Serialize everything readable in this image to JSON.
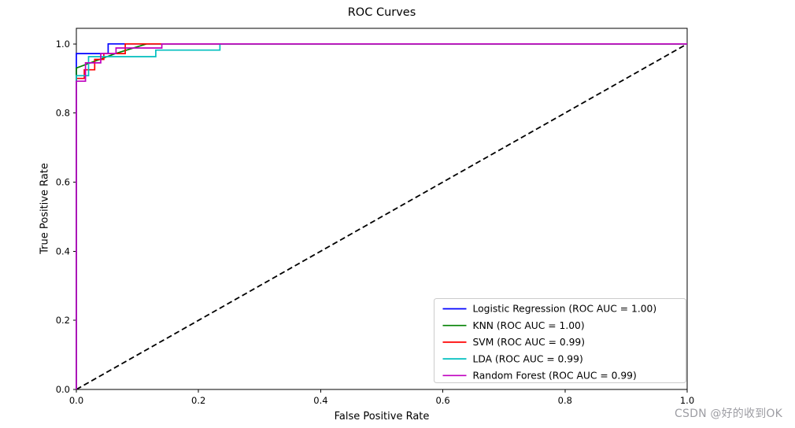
{
  "page": {
    "watermark": "CSDN @好的收到OK"
  },
  "chart_data": {
    "type": "line",
    "title": "ROC Curves",
    "xlabel": "False Positive Rate",
    "ylabel": "True Positive Rate",
    "xlim": [
      0,
      1
    ],
    "ylim": [
      0,
      1.045
    ],
    "grid": false,
    "legend_position": "lower right",
    "x_ticks": {
      "values": [
        0.0,
        0.2,
        0.4,
        0.6,
        0.8,
        1.0
      ],
      "labels": [
        "0.0",
        "0.2",
        "0.4",
        "0.6",
        "0.8",
        "1.0"
      ]
    },
    "y_ticks": {
      "values": [
        0.0,
        0.2,
        0.4,
        0.6,
        0.8,
        1.0
      ],
      "labels": [
        "0.0",
        "0.2",
        "0.4",
        "0.6",
        "0.8",
        "1.0"
      ]
    },
    "diagonal": {
      "label": "chance-line",
      "color": "#000000",
      "dashed": true,
      "points": [
        [
          0,
          0
        ],
        [
          1,
          1
        ]
      ]
    },
    "series": [
      {
        "name": "Logistic Regression (ROC AUC = 1.00)",
        "slug": "logistic-regression",
        "color": "#0000ff",
        "auc": "1.00",
        "points": [
          [
            0,
            0
          ],
          [
            0,
            0.972
          ],
          [
            0.052,
            0.972
          ],
          [
            0.052,
            1.0
          ],
          [
            1,
            1
          ]
        ]
      },
      {
        "name": "KNN (ROC AUC = 1.00)",
        "slug": "knn",
        "color": "#008000",
        "auc": "1.00",
        "points": [
          [
            0,
            0
          ],
          [
            0,
            0.93
          ],
          [
            0.064,
            0.972
          ],
          [
            0.115,
            1.0
          ],
          [
            1,
            1
          ]
        ]
      },
      {
        "name": "SVM (ROC AUC = 0.99)",
        "slug": "svm",
        "color": "#ff0000",
        "auc": "0.99",
        "points": [
          [
            0,
            0
          ],
          [
            0,
            0.9
          ],
          [
            0.013,
            0.9
          ],
          [
            0.013,
            0.925
          ],
          [
            0.03,
            0.925
          ],
          [
            0.03,
            0.955
          ],
          [
            0.045,
            0.955
          ],
          [
            0.045,
            0.972
          ],
          [
            0.08,
            0.972
          ],
          [
            0.08,
            1.0
          ],
          [
            1,
            1
          ]
        ]
      },
      {
        "name": "LDA (ROC AUC = 0.99)",
        "slug": "lda",
        "color": "#00bfbf",
        "auc": "0.99",
        "points": [
          [
            0,
            0
          ],
          [
            0,
            0.908
          ],
          [
            0.02,
            0.908
          ],
          [
            0.02,
            0.963
          ],
          [
            0.13,
            0.963
          ],
          [
            0.13,
            0.982
          ],
          [
            0.235,
            0.982
          ],
          [
            0.235,
            1.0
          ],
          [
            1,
            1
          ]
        ]
      },
      {
        "name": "Random Forest (ROC AUC = 0.99)",
        "slug": "random-forest",
        "color": "#bf00bf",
        "auc": "0.99",
        "points": [
          [
            0,
            0
          ],
          [
            0,
            0.892
          ],
          [
            0.015,
            0.892
          ],
          [
            0.015,
            0.945
          ],
          [
            0.04,
            0.945
          ],
          [
            0.04,
            0.972
          ],
          [
            0.065,
            0.972
          ],
          [
            0.065,
            0.988
          ],
          [
            0.14,
            0.988
          ],
          [
            0.14,
            1.0
          ],
          [
            1,
            1
          ]
        ]
      }
    ]
  }
}
